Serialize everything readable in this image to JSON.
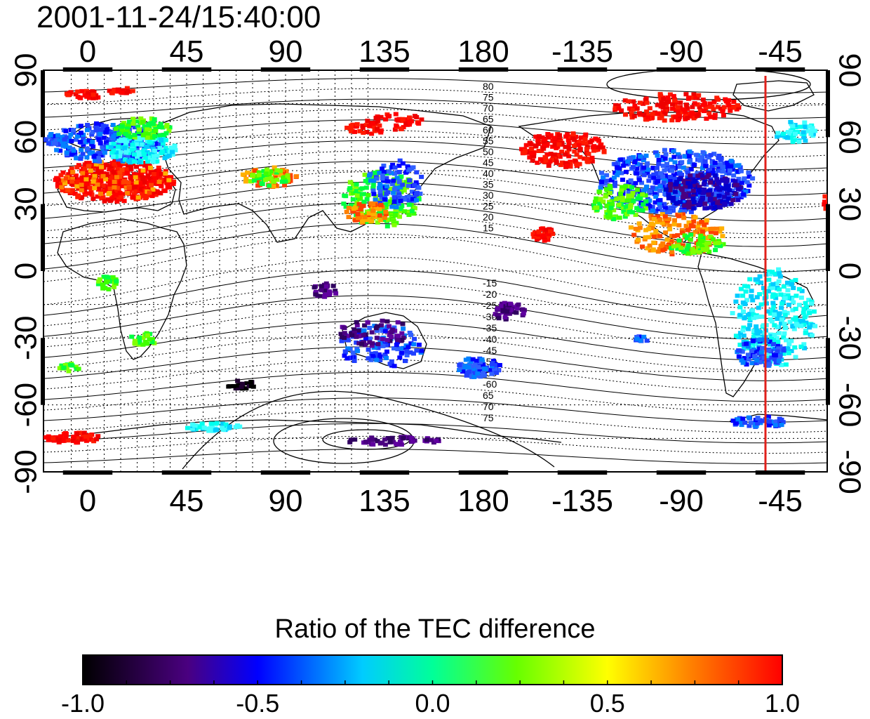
{
  "timestamp": "2001-11-24/15:40:00",
  "map": {
    "lon_ticks_top": [
      "0",
      "45",
      "90",
      "135",
      "180",
      "-135",
      "-90",
      "-45"
    ],
    "lon_ticks_bottom": [
      "0",
      "45",
      "90",
      "135",
      "180",
      "-135",
      "-90",
      "-45"
    ],
    "lat_ticks_left": [
      "90",
      "60",
      "30",
      "0",
      "-30",
      "-60",
      "-90"
    ],
    "lat_ticks_right": [
      "90",
      "60",
      "30",
      "0",
      "-30",
      "-60",
      "-90"
    ],
    "contour_labels_north": [
      "80",
      "75",
      "70",
      "65",
      "60",
      "55",
      "50",
      "45",
      "40",
      "35",
      "30",
      "25",
      "20",
      "15"
    ],
    "contour_labels_south": [
      "-15",
      "-20",
      "-25",
      "-30",
      "-35",
      "-40",
      "-45",
      "-50",
      "-55",
      "-60",
      "65",
      "70",
      "75"
    ],
    "terminator_line_color": "#e0201b"
  },
  "colorbar": {
    "title": "Ratio of the TEC difference",
    "ticks": [
      "-1.0",
      "-0.5",
      "0.0",
      "0.5",
      "1.0"
    ],
    "colors": [
      "#000000",
      "#4a0080",
      "#0000ff",
      "#00ffff",
      "#00ff00",
      "#ffff00",
      "#ff8000",
      "#ff0000"
    ]
  }
}
